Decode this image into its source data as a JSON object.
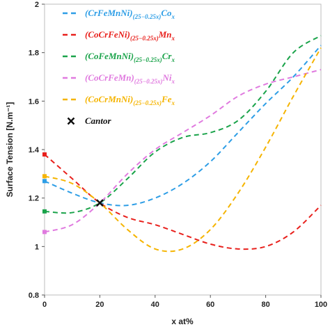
{
  "chart_data": {
    "type": "line",
    "xlabel": "x at%",
    "ylabel": "Surface Tension [N.m⁻¹]",
    "xlim": [
      0,
      100
    ],
    "ylim": [
      0.8,
      2.0
    ],
    "x_ticks": [
      "0",
      "20",
      "40",
      "60",
      "80",
      "100"
    ],
    "y_ticks": [
      "0.8",
      "1",
      "1.2",
      "1.4",
      "1.6",
      "1.8",
      "2"
    ],
    "grid": false,
    "legend_position": "top-left",
    "series": [
      {
        "name": "(CrFeMnNi)(25−0.25x)Cox",
        "main": "(CrFeMnNi)",
        "sub": "(25−0.25x)",
        "tail": "Co",
        "tail_sub": "x",
        "color": "#2e9ee6",
        "x": [
          0,
          10,
          20,
          30,
          40,
          50,
          60,
          70,
          80,
          90,
          100
        ],
        "y": [
          1.27,
          1.22,
          1.18,
          1.17,
          1.2,
          1.26,
          1.35,
          1.47,
          1.59,
          1.7,
          1.83
        ]
      },
      {
        "name": "(CoCrFeNi)(25−0.25x)Mnx",
        "main": "(CoCrFeNi)",
        "sub": "(25−0.25x)",
        "tail": "Mn",
        "tail_sub": "x",
        "color": "#e8201c",
        "x": [
          0,
          10,
          20,
          30,
          40,
          50,
          60,
          70,
          80,
          90,
          100
        ],
        "y": [
          1.38,
          1.28,
          1.18,
          1.12,
          1.09,
          1.05,
          1.01,
          0.99,
          1.0,
          1.06,
          1.17
        ]
      },
      {
        "name": "(CoFeMnNi)(25−0.25x)Crx",
        "main": "(CoFeMnNi)",
        "sub": "(25−0.25x)",
        "tail": "Cr",
        "tail_sub": "x",
        "color": "#1aa34a",
        "x": [
          0,
          10,
          20,
          30,
          40,
          50,
          60,
          70,
          80,
          90,
          100
        ],
        "y": [
          1.145,
          1.14,
          1.18,
          1.28,
          1.39,
          1.45,
          1.47,
          1.52,
          1.64,
          1.8,
          1.87
        ]
      },
      {
        "name": "(CoCrFeMn)(25−0.25x)Nix",
        "main": "(CoCrFeMn)",
        "sub": "(25−0.25x)",
        "tail": "Ni",
        "tail_sub": "x",
        "color": "#e07adf",
        "x": [
          0,
          10,
          20,
          30,
          40,
          50,
          60,
          70,
          80,
          90,
          100
        ],
        "y": [
          1.06,
          1.09,
          1.18,
          1.3,
          1.4,
          1.47,
          1.54,
          1.62,
          1.67,
          1.7,
          1.73
        ]
      },
      {
        "name": "(CoCrMnNi)(25−0.25x)Fex",
        "main": "(CoCrMnNi)",
        "sub": "(25−0.25x)",
        "tail": "Fe",
        "tail_sub": "x",
        "color": "#f5b400",
        "x": [
          0,
          10,
          20,
          30,
          40,
          50,
          60,
          70,
          80,
          90,
          100
        ],
        "y": [
          1.29,
          1.26,
          1.18,
          1.07,
          0.99,
          0.99,
          1.07,
          1.22,
          1.41,
          1.62,
          1.82
        ]
      }
    ],
    "cantor": {
      "label": "Cantor",
      "x": 20,
      "y": 1.18
    }
  }
}
